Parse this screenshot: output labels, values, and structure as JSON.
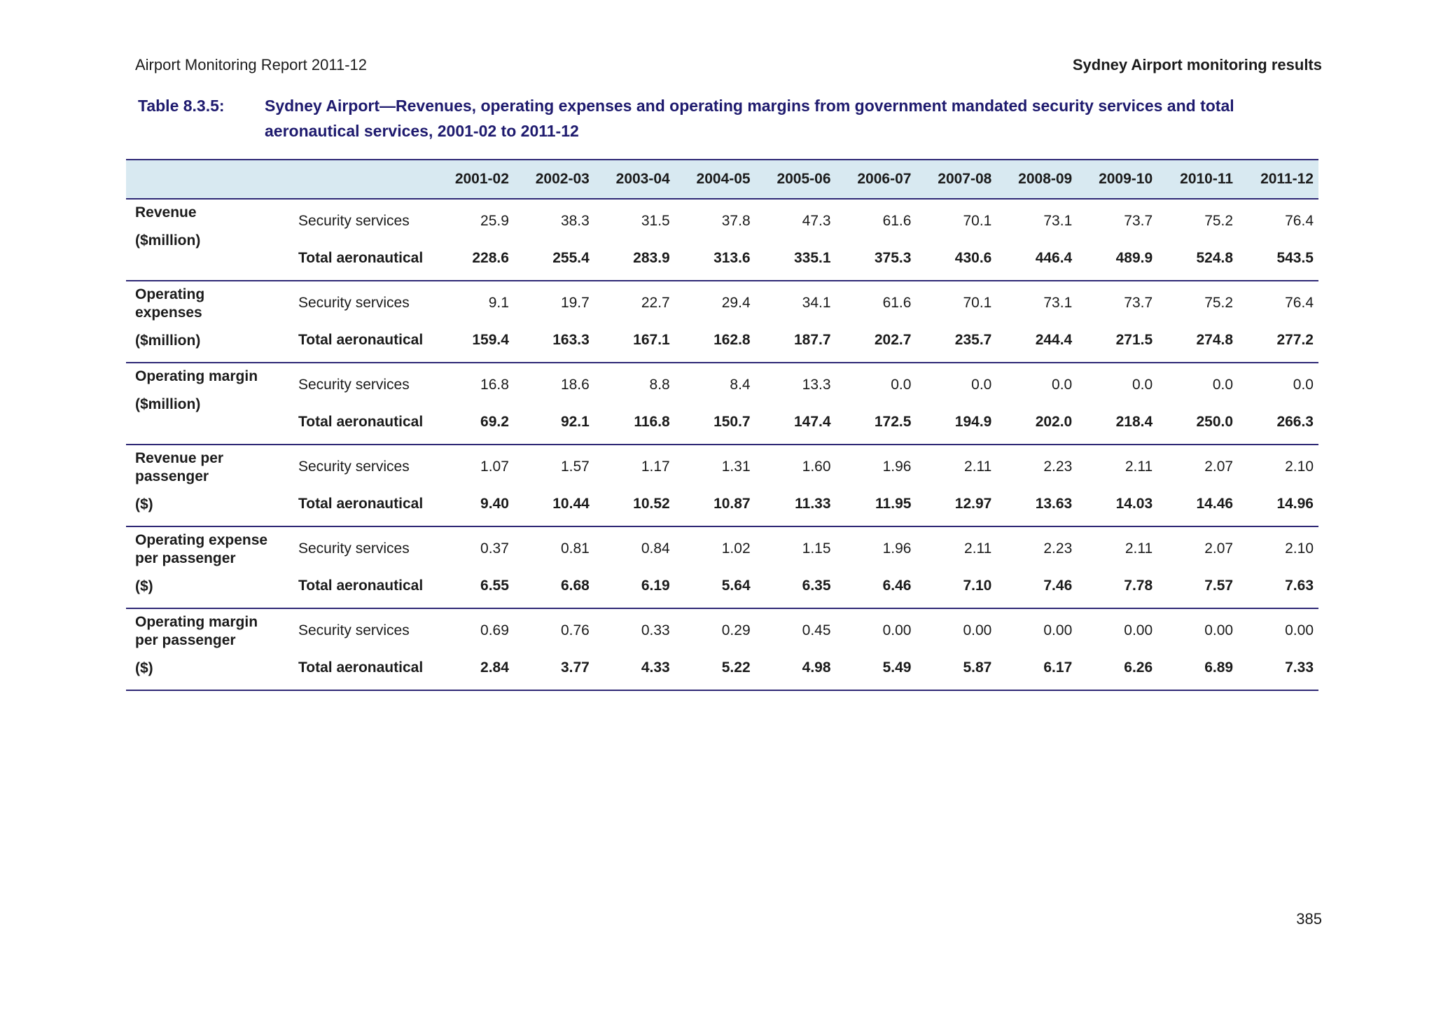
{
  "page": {
    "header_left": "Airport Monitoring Report 2011-12",
    "header_right": "Sydney Airport monitoring results",
    "page_number": "385"
  },
  "title": {
    "label": "Table 8.3.5:",
    "text": "Sydney Airport—Revenues, operating expenses and operating margins from government mandated security services and total aeronautical services, 2001-02 to 2011-12"
  },
  "colors": {
    "title_navy": "#1e1a6e",
    "rule_navy": "#2e2875",
    "header_band_bg": "#d8e9f1",
    "body_text": "#1b1b1b"
  },
  "table": {
    "years": [
      "2001-02",
      "2002-03",
      "2003-04",
      "2004-05",
      "2005-06",
      "2006-07",
      "2007-08",
      "2008-09",
      "2009-10",
      "2010-11",
      "2011-12"
    ],
    "sections": [
      {
        "label": "Revenue",
        "unit": "($million)",
        "rows": [
          {
            "name": "Security services",
            "bold": false,
            "values": [
              "25.9",
              "38.3",
              "31.5",
              "37.8",
              "47.3",
              "61.6",
              "70.1",
              "73.1",
              "73.7",
              "75.2",
              "76.4"
            ]
          },
          {
            "name": "Total aeronautical",
            "bold": true,
            "values": [
              "228.6",
              "255.4",
              "283.9",
              "313.6",
              "335.1",
              "375.3",
              "430.6",
              "446.4",
              "489.9",
              "524.8",
              "543.5"
            ]
          }
        ]
      },
      {
        "label": "Operating\nexpenses",
        "unit": "($million)",
        "rows": [
          {
            "name": "Security services",
            "bold": false,
            "values": [
              "9.1",
              "19.7",
              "22.7",
              "29.4",
              "34.1",
              "61.6",
              "70.1",
              "73.1",
              "73.7",
              "75.2",
              "76.4"
            ]
          },
          {
            "name": "Total aeronautical",
            "bold": true,
            "values": [
              "159.4",
              "163.3",
              "167.1",
              "162.8",
              "187.7",
              "202.7",
              "235.7",
              "244.4",
              "271.5",
              "274.8",
              "277.2"
            ]
          }
        ]
      },
      {
        "label": "Operating margin",
        "unit": "($million)",
        "rows": [
          {
            "name": "Security services",
            "bold": false,
            "values": [
              "16.8",
              "18.6",
              "8.8",
              "8.4",
              "13.3",
              "0.0",
              "0.0",
              "0.0",
              "0.0",
              "0.0",
              "0.0"
            ]
          },
          {
            "name": "Total aeronautical",
            "bold": true,
            "values": [
              "69.2",
              "92.1",
              "116.8",
              "150.7",
              "147.4",
              "172.5",
              "194.9",
              "202.0",
              "218.4",
              "250.0",
              "266.3"
            ]
          }
        ]
      },
      {
        "label": "Revenue per\npassenger",
        "unit": "($)",
        "rows": [
          {
            "name": "Security services",
            "bold": false,
            "values": [
              "1.07",
              "1.57",
              "1.17",
              "1.31",
              "1.60",
              "1.96",
              "2.11",
              "2.23",
              "2.11",
              "2.07",
              "2.10"
            ]
          },
          {
            "name": "Total aeronautical",
            "bold": true,
            "values": [
              "9.40",
              "10.44",
              "10.52",
              "10.87",
              "11.33",
              "11.95",
              "12.97",
              "13.63",
              "14.03",
              "14.46",
              "14.96"
            ]
          }
        ]
      },
      {
        "label": "Operating expense\nper passenger",
        "unit": "($)",
        "rows": [
          {
            "name": "Security services",
            "bold": false,
            "values": [
              "0.37",
              "0.81",
              "0.84",
              "1.02",
              "1.15",
              "1.96",
              "2.11",
              "2.23",
              "2.11",
              "2.07",
              "2.10"
            ]
          },
          {
            "name": "Total aeronautical",
            "bold": true,
            "values": [
              "6.55",
              "6.68",
              "6.19",
              "5.64",
              "6.35",
              "6.46",
              "7.10",
              "7.46",
              "7.78",
              "7.57",
              "7.63"
            ]
          }
        ]
      },
      {
        "label": "Operating margin\nper passenger",
        "unit": "($)",
        "rows": [
          {
            "name": "Security services",
            "bold": false,
            "values": [
              "0.69",
              "0.76",
              "0.33",
              "0.29",
              "0.45",
              "0.00",
              "0.00",
              "0.00",
              "0.00",
              "0.00",
              "0.00"
            ]
          },
          {
            "name": "Total aeronautical",
            "bold": true,
            "values": [
              "2.84",
              "3.77",
              "4.33",
              "5.22",
              "4.98",
              "5.49",
              "5.87",
              "6.17",
              "6.26",
              "6.89",
              "7.33"
            ]
          }
        ]
      }
    ]
  }
}
